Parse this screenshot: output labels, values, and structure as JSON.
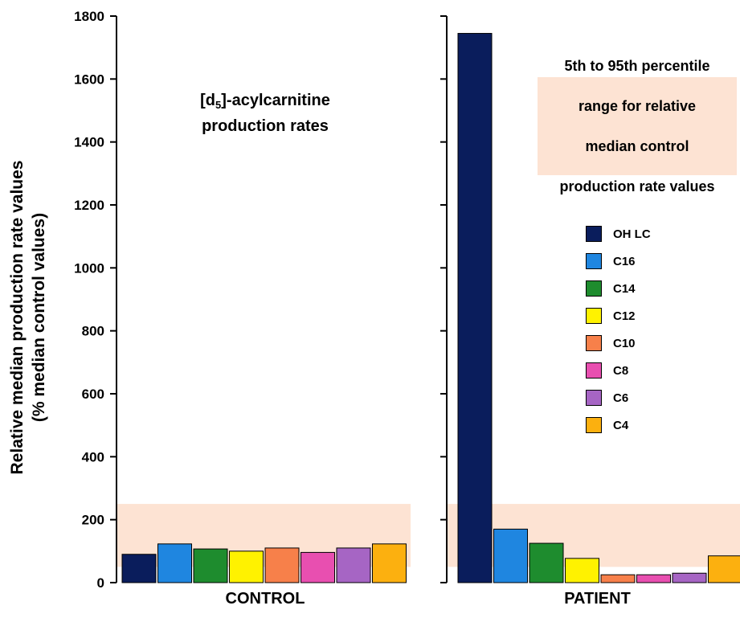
{
  "chart_data": {
    "type": "bar",
    "ylabel_line1": "Relative median production rate values",
    "ylabel_line2": "(% median control values)",
    "ylim": [
      0,
      1800
    ],
    "yticks": [
      0,
      200,
      400,
      600,
      800,
      1000,
      1200,
      1400,
      1600,
      1800
    ],
    "inset_title_main": "[d",
    "inset_title_sub": "5",
    "inset_title_rest": "]-acylcarnitine",
    "inset_title_line2": "production rates",
    "reference_band": {
      "label_line1": "5th to 95th percentile",
      "label_line2": "range for relative",
      "label_line3": "median control",
      "label_line4": "production rate values",
      "low": 50,
      "high": 250,
      "color": "#fde3d3"
    },
    "series": [
      {
        "name": "OH LC",
        "color": "#0a1d5c"
      },
      {
        "name": "C16",
        "color": "#1f86e0"
      },
      {
        "name": "C14",
        "color": "#1e8c2e"
      },
      {
        "name": "C12",
        "color": "#fff200"
      },
      {
        "name": "C10",
        "color": "#f7804a"
      },
      {
        "name": "C8",
        "color": "#e84fb0"
      },
      {
        "name": "C6",
        "color": "#a665c4"
      },
      {
        "name": "C4",
        "color": "#fcb00f"
      }
    ],
    "panels": [
      {
        "label": "CONTROL",
        "values": [
          90,
          123,
          107,
          100,
          110,
          96,
          110,
          123
        ]
      },
      {
        "label": "PATIENT",
        "values": [
          1745,
          170,
          125,
          77,
          25,
          25,
          30,
          85
        ]
      }
    ]
  }
}
